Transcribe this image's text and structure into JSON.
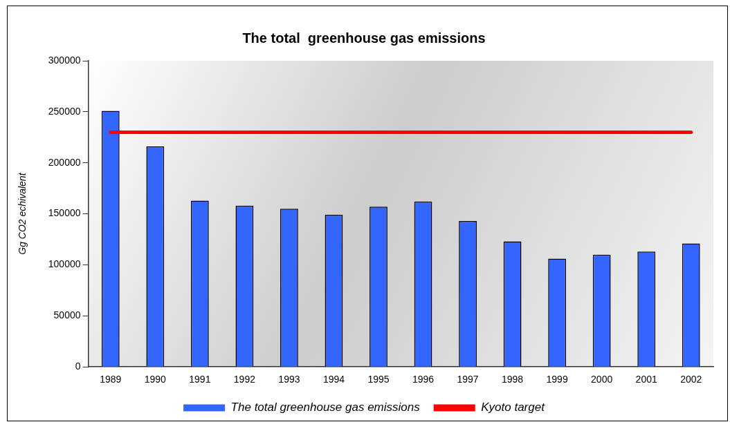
{
  "chart_data": {
    "type": "bar",
    "title": "The total  greenhouse gas emissions",
    "ylabel": "Gg CO2 echivalent",
    "categories": [
      "1989",
      "1990",
      "1991",
      "1992",
      "1993",
      "1994",
      "1995",
      "1996",
      "1997",
      "1998",
      "1999",
      "2000",
      "2001",
      "2002"
    ],
    "series": [
      {
        "name": "The total greenhouse gas emissions",
        "color": "#3366ff",
        "values": [
          251000,
          216000,
          163000,
          158000,
          155000,
          149000,
          157000,
          162000,
          143000,
          123000,
          106000,
          110000,
          113000,
          121000
        ]
      },
      {
        "name": "Kyoto target",
        "type": "line",
        "color": "#ff0000",
        "marker": "none",
        "values": [
          230000,
          230000,
          230000,
          230000,
          230000,
          230000,
          230000,
          230000,
          230000,
          230000,
          230000,
          230000,
          230000,
          230000
        ]
      }
    ],
    "ylim": [
      0,
      300000
    ],
    "yticks": [
      0,
      50000,
      100000,
      150000,
      200000,
      250000,
      300000
    ],
    "legend": "bottom"
  }
}
